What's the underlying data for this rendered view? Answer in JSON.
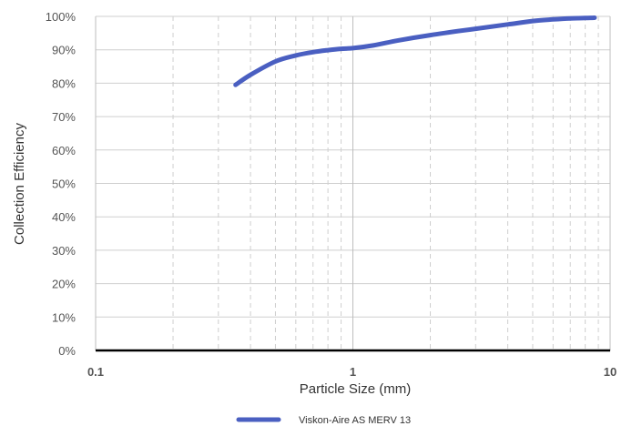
{
  "chart_data": {
    "type": "line",
    "title": "",
    "xlabel": "Particle Size (mm)",
    "ylabel": "Collection Efficiency",
    "x_scale": "log",
    "xlim": [
      0.1,
      10
    ],
    "ylim": [
      0,
      100
    ],
    "x_ticks": [
      {
        "value": 0.1,
        "label": "0.1"
      },
      {
        "value": 1,
        "label": "1"
      },
      {
        "value": 10,
        "label": "10"
      }
    ],
    "y_ticks": [
      {
        "value": 0,
        "label": "0%"
      },
      {
        "value": 10,
        "label": "10%"
      },
      {
        "value": 20,
        "label": "20%"
      },
      {
        "value": 30,
        "label": "30%"
      },
      {
        "value": 40,
        "label": "40%"
      },
      {
        "value": 50,
        "label": "50%"
      },
      {
        "value": 60,
        "label": "60%"
      },
      {
        "value": 70,
        "label": "70%"
      },
      {
        "value": 80,
        "label": "80%"
      },
      {
        "value": 90,
        "label": "90%"
      },
      {
        "value": 100,
        "label": "100%"
      }
    ],
    "grid": true,
    "legend_position": "bottom",
    "series": [
      {
        "name": "Viskon-Aire AS MERV 13",
        "color": "#4a5fc1",
        "x": [
          0.35,
          0.4,
          0.5,
          0.6,
          0.7,
          0.8,
          0.9,
          1.0,
          1.2,
          1.5,
          2.0,
          3.0,
          4.0,
          5.0,
          6.0,
          7.0,
          8.0,
          8.7
        ],
        "y": [
          79.5,
          82.5,
          86.5,
          88.3,
          89.3,
          89.9,
          90.3,
          90.5,
          91.3,
          92.8,
          94.4,
          96.3,
          97.6,
          98.6,
          99.1,
          99.4,
          99.5,
          99.6
        ]
      }
    ]
  }
}
